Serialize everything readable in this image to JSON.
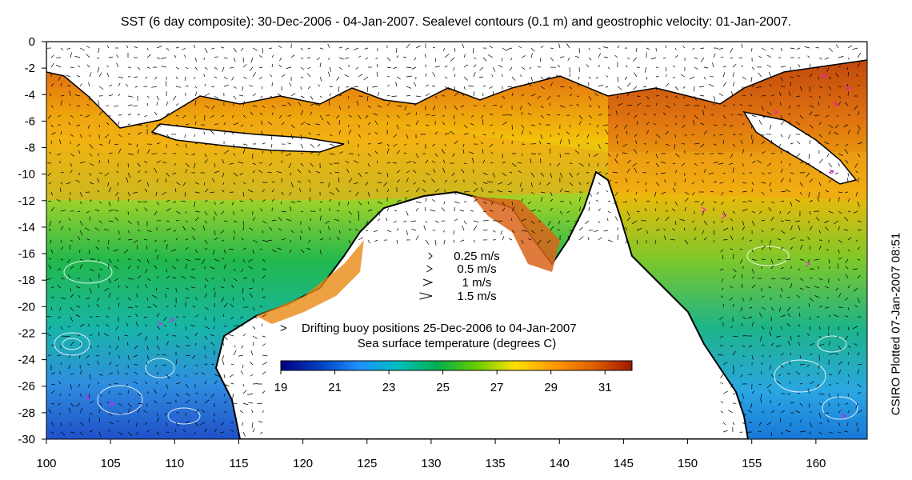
{
  "title": "SST (6 day composite): 30-Dec-2006 - 04-Jan-2007. Sealevel contours (0.1 m) and geostrophic velocity: 01-Jan-2007.",
  "side_credit": "CSIRO Plotted 07-Jan-2007 08:51",
  "axes": {
    "x_ticks": [
      "100",
      "105",
      "110",
      "115",
      "120",
      "125",
      "130",
      "135",
      "140",
      "145",
      "150",
      "155",
      "160"
    ],
    "y_ticks": [
      "0",
      "-2",
      "-4",
      "-6",
      "-8",
      "-10",
      "-12",
      "-14",
      "-16",
      "-18",
      "-20",
      "-22",
      "-24",
      "-26",
      "-28",
      "-30"
    ],
    "x_range": [
      100,
      164
    ],
    "y_range": [
      -30,
      0
    ]
  },
  "velocity_key": {
    "items": [
      {
        "label": "0.25 m/s",
        "speed": 0.25
      },
      {
        "label": "0.5 m/s",
        "speed": 0.5
      },
      {
        "label": "1 m/s",
        "speed": 1
      },
      {
        "label": "1.5 m/s",
        "speed": 1.5
      }
    ]
  },
  "buoy_legend": {
    "marker": ">",
    "label": "Drifting buoy positions 25-Dec-2006 to 04-Jan-2007",
    "color": "#ff00ff"
  },
  "colorbar": {
    "title": "Sea surface temperature (degrees C)",
    "min": 19,
    "max": 32,
    "tick_labels": [
      "19",
      "21",
      "23",
      "25",
      "27",
      "29",
      "31"
    ],
    "colors": [
      "#000080",
      "#0040c0",
      "#1e90ff",
      "#00c0c0",
      "#00b050",
      "#66cc00",
      "#ffe000",
      "#ff9900",
      "#e06000",
      "#a01800"
    ]
  },
  "colors": {
    "land": "#ffffff",
    "coastline": "#000000",
    "contour": "#ffffff",
    "vector": "#000000"
  }
}
